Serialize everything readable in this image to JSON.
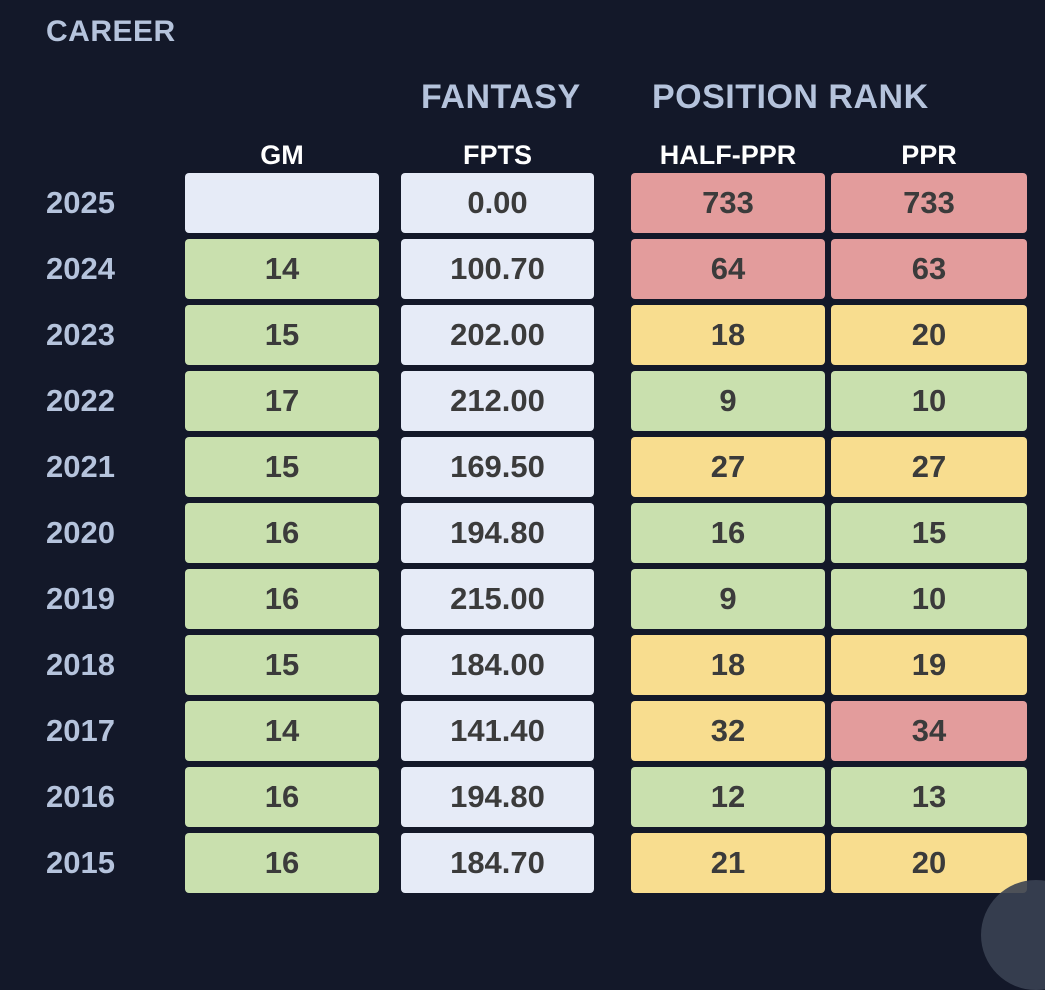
{
  "section_title": "CAREER",
  "groups": {
    "fantasy": "FANTASY",
    "position_rank": "POSITION RANK"
  },
  "columns": {
    "gm": "GM",
    "fpts": "FPTS",
    "half_ppr": "HALF-PPR",
    "ppr": "PPR"
  },
  "colors": {
    "background": "#131829",
    "neutral": "#e6ebf7",
    "green": "#c9e0ae",
    "yellow": "#f8dd8f",
    "red": "#e39c9c"
  },
  "rows": [
    {
      "year": "2025",
      "gm": "",
      "gm_color": "#e6ebf7",
      "fpts": "0.00",
      "half_ppr": "733",
      "half_ppr_color": "#e39c9c",
      "ppr": "733",
      "ppr_color": "#e39c9c"
    },
    {
      "year": "2024",
      "gm": "14",
      "gm_color": "#c9e0ae",
      "fpts": "100.70",
      "half_ppr": "64",
      "half_ppr_color": "#e39c9c",
      "ppr": "63",
      "ppr_color": "#e39c9c"
    },
    {
      "year": "2023",
      "gm": "15",
      "gm_color": "#c9e0ae",
      "fpts": "202.00",
      "half_ppr": "18",
      "half_ppr_color": "#f8dd8f",
      "ppr": "20",
      "ppr_color": "#f8dd8f"
    },
    {
      "year": "2022",
      "gm": "17",
      "gm_color": "#c9e0ae",
      "fpts": "212.00",
      "half_ppr": "9",
      "half_ppr_color": "#c9e0ae",
      "ppr": "10",
      "ppr_color": "#c9e0ae"
    },
    {
      "year": "2021",
      "gm": "15",
      "gm_color": "#c9e0ae",
      "fpts": "169.50",
      "half_ppr": "27",
      "half_ppr_color": "#f8dd8f",
      "ppr": "27",
      "ppr_color": "#f8dd8f"
    },
    {
      "year": "2020",
      "gm": "16",
      "gm_color": "#c9e0ae",
      "fpts": "194.80",
      "half_ppr": "16",
      "half_ppr_color": "#c9e0ae",
      "ppr": "15",
      "ppr_color": "#c9e0ae"
    },
    {
      "year": "2019",
      "gm": "16",
      "gm_color": "#c9e0ae",
      "fpts": "215.00",
      "half_ppr": "9",
      "half_ppr_color": "#c9e0ae",
      "ppr": "10",
      "ppr_color": "#c9e0ae"
    },
    {
      "year": "2018",
      "gm": "15",
      "gm_color": "#c9e0ae",
      "fpts": "184.00",
      "half_ppr": "18",
      "half_ppr_color": "#f8dd8f",
      "ppr": "19",
      "ppr_color": "#f8dd8f"
    },
    {
      "year": "2017",
      "gm": "14",
      "gm_color": "#c9e0ae",
      "fpts": "141.40",
      "half_ppr": "32",
      "half_ppr_color": "#f8dd8f",
      "ppr": "34",
      "ppr_color": "#e39c9c"
    },
    {
      "year": "2016",
      "gm": "16",
      "gm_color": "#c9e0ae",
      "fpts": "194.80",
      "half_ppr": "12",
      "half_ppr_color": "#c9e0ae",
      "ppr": "13",
      "ppr_color": "#c9e0ae"
    },
    {
      "year": "2015",
      "gm": "16",
      "gm_color": "#c9e0ae",
      "fpts": "184.70",
      "half_ppr": "21",
      "half_ppr_color": "#f8dd8f",
      "ppr": "20",
      "ppr_color": "#f8dd8f"
    }
  ]
}
